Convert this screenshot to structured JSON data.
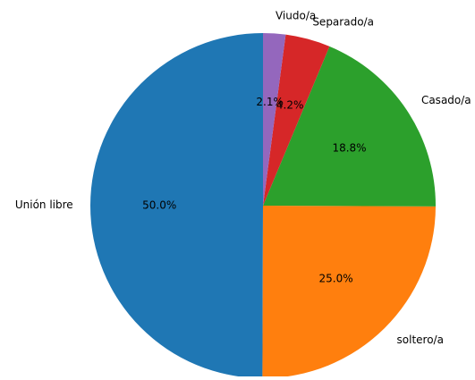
{
  "chart_data": {
    "type": "pie",
    "categories": [
      "Unión libre",
      "soltero/a",
      "Casado/a",
      "Separado/a",
      "Viudo/a"
    ],
    "values": [
      50.0,
      25.0,
      18.8,
      4.2,
      2.1
    ],
    "value_labels": [
      "50.0%",
      "25.0%",
      "18.8%",
      "4.2%",
      "2.1%"
    ],
    "colors": [
      "#1f77b4",
      "#ff7f0e",
      "#2ca02c",
      "#d62728",
      "#9467bd"
    ],
    "startangle": 90
  }
}
